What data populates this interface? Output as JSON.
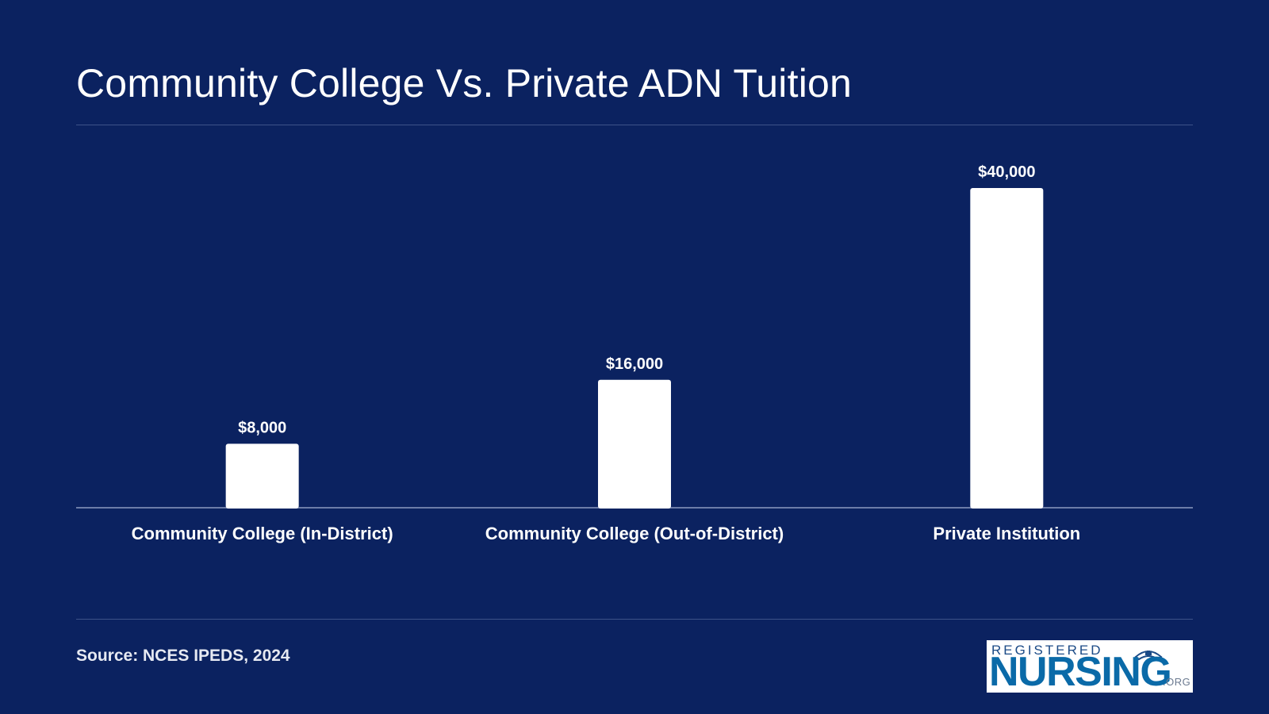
{
  "title": "Community College Vs. Private ADN Tuition",
  "source": "Source: NCES IPEDS, 2024",
  "logo": {
    "top_text": "REGISTERED",
    "main_text": "NURSING",
    "suffix": ".ORG",
    "colors": {
      "top": "#1b4a86",
      "main": "#0a6aa8"
    }
  },
  "colors": {
    "background": "#0b2260",
    "bar": "#ffffff",
    "rule": "#3d5288"
  },
  "chart_data": {
    "type": "bar",
    "categories": [
      "Community College (In-District)",
      "Community College (Out-of-District)",
      "Private Institution"
    ],
    "values": [
      8000,
      16000,
      40000
    ],
    "data_labels": [
      "$8,000",
      "$16,000",
      "$40,000"
    ],
    "title": "Community College Vs. Private ADN Tuition",
    "xlabel": "",
    "ylabel": "",
    "ylim": [
      0,
      40000
    ],
    "grid": false,
    "legend": "none"
  }
}
